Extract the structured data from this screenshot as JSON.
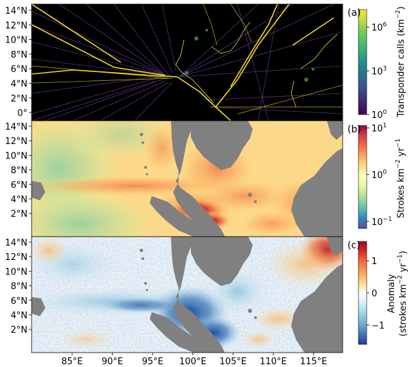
{
  "latitude_ticks": {
    "a": [
      "14°N",
      "12°N",
      "10°N",
      "8°N",
      "6°N",
      "4°N",
      "2°N",
      "0°"
    ],
    "b": [
      "14°N",
      "12°N",
      "10°N",
      "8°N",
      "6°N",
      "4°N",
      "2°N"
    ],
    "c": [
      "14°N",
      "12°N",
      "10°N",
      "8°N",
      "6°N",
      "4°N",
      "2°N"
    ]
  },
  "longitude_ticks": [
    "85°E",
    "90°E",
    "95°E",
    "100°E",
    "105°E",
    "110°E",
    "115°E"
  ],
  "panels": [
    {
      "id": "a",
      "label": "(a)",
      "colorbar_title_text": "Transponder calls (km",
      "colorbar_title_sup": "−2",
      "colorbar_title_end": ")",
      "colorbar_ticks": [
        {
          "base": "10",
          "exp": "6",
          "value": 1000000
        },
        {
          "base": "10",
          "exp": "3",
          "value": 1000
        },
        {
          "base": "10",
          "exp": "0",
          "value": 1
        }
      ],
      "scale": "log",
      "colormap": [
        "#fde725",
        "#5ec962",
        "#21918c",
        "#3b528b",
        "#440154"
      ]
    },
    {
      "id": "b",
      "label": "(b)",
      "colorbar_title_text": "Strokes km",
      "colorbar_title_sup": "−2",
      "colorbar_title_mid": " yr",
      "colorbar_title_sup2": "−1",
      "colorbar_ticks": [
        {
          "base": "10",
          "exp": "1",
          "value": 10
        },
        {
          "base": "10",
          "exp": "0",
          "value": 1
        },
        {
          "base": "10",
          "exp": "−1",
          "value": 0.1
        }
      ],
      "scale": "log",
      "colormap": [
        "#9e0142",
        "#d53e4f",
        "#f46d43",
        "#fdae61",
        "#fee08b",
        "#ffffbf",
        "#e6f598",
        "#abdda4",
        "#66c2a5",
        "#3288bd",
        "#5e4fa2"
      ]
    },
    {
      "id": "c",
      "label": "(c)",
      "colorbar_title_line1": "Anomaly",
      "colorbar_title_line2_text": "(strokes km",
      "colorbar_title_line2_sup": "−2",
      "colorbar_title_line2_mid": " yr",
      "colorbar_title_line2_sup2": "−1",
      "colorbar_title_line2_end": ")",
      "colorbar_ticks": [
        {
          "text": "1",
          "value": 1
        },
        {
          "text": "0",
          "value": 0
        },
        {
          "text": "−1",
          "value": -1
        }
      ],
      "scale": "linear",
      "colormap": [
        "#a50026",
        "#d73027",
        "#f46d43",
        "#fdae61",
        "#fee090",
        "#ffffff",
        "#e0f3f8",
        "#abd9e9",
        "#74add1",
        "#4575b4",
        "#313695"
      ]
    }
  ],
  "colors": {
    "land": "#808080",
    "panel_a_background": "#000000",
    "panel_a_route_light": "#fde725",
    "panel_a_route_dim": "#5b3b8c"
  }
}
